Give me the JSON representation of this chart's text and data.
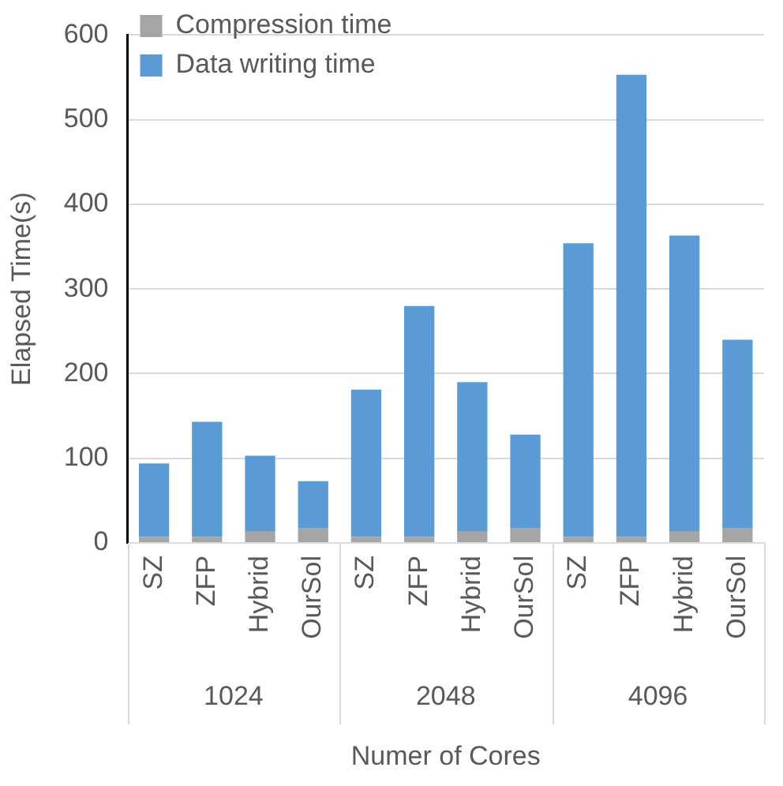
{
  "chart_data": {
    "type": "bar",
    "stacked": true,
    "xlabel": "Numer of Cores",
    "ylabel": "Elapsed Time(s)",
    "categories": [
      "SZ",
      "ZFP",
      "Hybrid",
      "OurSol",
      "SZ",
      "ZFP",
      "Hybrid",
      "OurSol",
      "SZ",
      "ZFP",
      "Hybrid",
      "OurSol"
    ],
    "series": [
      {
        "name": "Compression time",
        "color": "#a5a5a5",
        "values": [
          7,
          7,
          14,
          17,
          7,
          7,
          14,
          17,
          7,
          7,
          14,
          17
        ]
      },
      {
        "name": "Data writing time",
        "color": "#5b9bd5",
        "values": [
          87,
          136,
          89,
          56,
          174,
          273,
          176,
          111,
          347,
          546,
          349,
          223
        ]
      }
    ],
    "annotations": [
      "1024",
      "2048",
      "4096"
    ],
    "ylim": [
      0,
      600
    ],
    "yticks": [
      0,
      100,
      200,
      300,
      400,
      500,
      600
    ],
    "grid": "y",
    "legend": "top left"
  }
}
